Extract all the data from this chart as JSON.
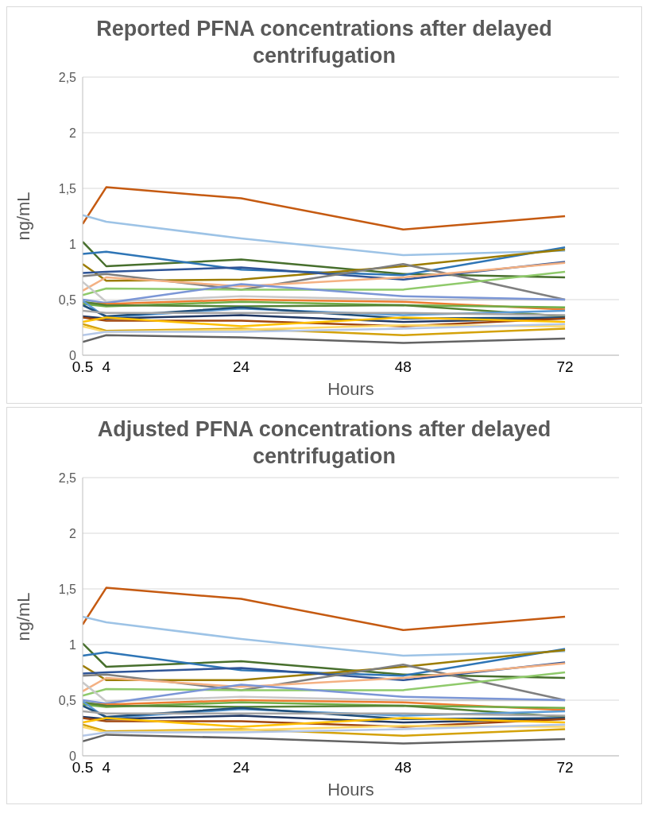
{
  "chart_data": [
    {
      "type": "line",
      "title": "Reported PFNA concentrations after delayed centrifugation",
      "xlabel": "Hours",
      "ylabel": "ng/mL",
      "x": [
        0.5,
        4,
        24,
        48,
        72
      ],
      "xlim": [
        0.5,
        80
      ],
      "xticks": [
        0.5,
        4,
        24,
        48,
        72
      ],
      "ylim": [
        0,
        2.5
      ],
      "yticks": [
        {
          "value": 0,
          "label": "0"
        },
        {
          "value": 0.5,
          "label": "0,5"
        },
        {
          "value": 1,
          "label": "1"
        },
        {
          "value": 1.5,
          "label": "1,5"
        },
        {
          "value": 2,
          "label": "2"
        },
        {
          "value": 2.5,
          "label": "2,5"
        }
      ],
      "grid": "y",
      "legend": false,
      "series": [
        {
          "color": "#c55a11",
          "values": [
            1.18,
            1.51,
            1.41,
            1.13,
            1.25
          ]
        },
        {
          "color": "#9dc3e6",
          "values": [
            1.26,
            1.2,
            1.05,
            0.9,
            0.94
          ]
        },
        {
          "color": "#476f2d",
          "values": [
            1.02,
            0.8,
            0.86,
            0.73,
            0.7
          ]
        },
        {
          "color": "#2e75b6",
          "values": [
            0.91,
            0.93,
            0.77,
            0.72,
            0.97
          ]
        },
        {
          "color": "#9c7c00",
          "values": [
            0.82,
            0.67,
            0.68,
            0.8,
            0.95
          ]
        },
        {
          "color": "#2f5597",
          "values": [
            0.74,
            0.75,
            0.79,
            0.68,
            0.84
          ]
        },
        {
          "color": "#7f7f7f",
          "values": [
            0.71,
            0.73,
            0.59,
            0.82,
            0.5
          ]
        },
        {
          "color": "#f4b183",
          "values": [
            0.58,
            0.7,
            0.62,
            0.7,
            0.83
          ]
        },
        {
          "color": "#8fca6b",
          "values": [
            0.54,
            0.6,
            0.59,
            0.59,
            0.75
          ]
        },
        {
          "color": "#c9c9c9",
          "values": [
            0.66,
            0.48,
            0.53,
            0.5,
            0.5
          ]
        },
        {
          "color": "#7b96d6",
          "values": [
            0.5,
            0.47,
            0.64,
            0.53,
            0.5
          ]
        },
        {
          "color": "#ed7d31",
          "values": [
            0.47,
            0.46,
            0.5,
            0.48,
            0.41
          ]
        },
        {
          "color": "#70ad47",
          "values": [
            0.46,
            0.44,
            0.48,
            0.45,
            0.43
          ]
        },
        {
          "color": "#548235",
          "values": [
            0.48,
            0.45,
            0.44,
            0.45,
            0.35
          ]
        },
        {
          "color": "#5b9bd5",
          "values": [
            0.49,
            0.34,
            0.42,
            0.36,
            0.4
          ]
        },
        {
          "color": "#1f4e79",
          "values": [
            0.45,
            0.35,
            0.43,
            0.33,
            0.34
          ]
        },
        {
          "color": "#a5a5a5",
          "values": [
            0.4,
            0.38,
            0.38,
            0.38,
            0.36
          ]
        },
        {
          "color": "#203864",
          "values": [
            0.35,
            0.33,
            0.36,
            0.3,
            0.33
          ]
        },
        {
          "color": "#a0460f",
          "values": [
            0.34,
            0.31,
            0.31,
            0.26,
            0.33
          ]
        },
        {
          "color": "#ffc000",
          "values": [
            0.3,
            0.34,
            0.26,
            0.34,
            0.3
          ]
        },
        {
          "color": "#d4a20a",
          "values": [
            0.28,
            0.22,
            0.24,
            0.18,
            0.24
          ]
        },
        {
          "color": "#ffd966",
          "values": [
            0.26,
            0.21,
            0.23,
            0.27,
            0.26
          ]
        },
        {
          "color": "#b4c7e7",
          "values": [
            0.18,
            0.21,
            0.21,
            0.24,
            0.28
          ]
        },
        {
          "color": "#636363",
          "values": [
            0.12,
            0.18,
            0.16,
            0.11,
            0.15
          ]
        }
      ]
    },
    {
      "type": "line",
      "title": "Adjusted PFNA concentrations after delayed centrifugation",
      "xlabel": "Hours",
      "ylabel": "ng/mL",
      "x": [
        0.5,
        4,
        24,
        48,
        72
      ],
      "xlim": [
        0.5,
        80
      ],
      "xticks": [
        0.5,
        4,
        24,
        48,
        72
      ],
      "ylim": [
        0,
        2.5
      ],
      "yticks": [
        {
          "value": 0,
          "label": "0"
        },
        {
          "value": 0.5,
          "label": "0,5"
        },
        {
          "value": 1,
          "label": "1"
        },
        {
          "value": 1.5,
          "label": "1,5"
        },
        {
          "value": 2,
          "label": "2"
        },
        {
          "value": 2.5,
          "label": "2,5"
        }
      ],
      "grid": "y",
      "legend": false,
      "series": [
        {
          "color": "#c55a11",
          "values": [
            1.18,
            1.51,
            1.41,
            1.13,
            1.25
          ]
        },
        {
          "color": "#9dc3e6",
          "values": [
            1.25,
            1.2,
            1.05,
            0.9,
            0.94
          ]
        },
        {
          "color": "#476f2d",
          "values": [
            1.01,
            0.8,
            0.85,
            0.73,
            0.7
          ]
        },
        {
          "color": "#2e75b6",
          "values": [
            0.9,
            0.93,
            0.77,
            0.72,
            0.96
          ]
        },
        {
          "color": "#9c7c00",
          "values": [
            0.81,
            0.68,
            0.68,
            0.8,
            0.95
          ]
        },
        {
          "color": "#2f5597",
          "values": [
            0.74,
            0.75,
            0.79,
            0.68,
            0.84
          ]
        },
        {
          "color": "#7f7f7f",
          "values": [
            0.72,
            0.73,
            0.59,
            0.82,
            0.5
          ]
        },
        {
          "color": "#f4b183",
          "values": [
            0.58,
            0.7,
            0.62,
            0.7,
            0.83
          ]
        },
        {
          "color": "#8fca6b",
          "values": [
            0.54,
            0.6,
            0.59,
            0.59,
            0.75
          ]
        },
        {
          "color": "#c9c9c9",
          "values": [
            0.66,
            0.49,
            0.53,
            0.5,
            0.5
          ]
        },
        {
          "color": "#7b96d6",
          "values": [
            0.5,
            0.47,
            0.64,
            0.53,
            0.5
          ]
        },
        {
          "color": "#ed7d31",
          "values": [
            0.47,
            0.46,
            0.5,
            0.48,
            0.41
          ]
        },
        {
          "color": "#70ad47",
          "values": [
            0.46,
            0.44,
            0.48,
            0.45,
            0.43
          ]
        },
        {
          "color": "#548235",
          "values": [
            0.48,
            0.45,
            0.44,
            0.45,
            0.35
          ]
        },
        {
          "color": "#5b9bd5",
          "values": [
            0.49,
            0.34,
            0.42,
            0.36,
            0.4
          ]
        },
        {
          "color": "#1f4e79",
          "values": [
            0.45,
            0.35,
            0.43,
            0.33,
            0.34
          ]
        },
        {
          "color": "#a5a5a5",
          "values": [
            0.4,
            0.38,
            0.38,
            0.38,
            0.36
          ]
        },
        {
          "color": "#203864",
          "values": [
            0.35,
            0.33,
            0.36,
            0.3,
            0.33
          ]
        },
        {
          "color": "#a0460f",
          "values": [
            0.34,
            0.31,
            0.31,
            0.26,
            0.33
          ]
        },
        {
          "color": "#ffc000",
          "values": [
            0.3,
            0.34,
            0.26,
            0.34,
            0.3
          ]
        },
        {
          "color": "#d4a20a",
          "values": [
            0.28,
            0.22,
            0.24,
            0.18,
            0.24
          ]
        },
        {
          "color": "#ffd966",
          "values": [
            0.26,
            0.21,
            0.23,
            0.27,
            0.26
          ]
        },
        {
          "color": "#b4c7e7",
          "values": [
            0.18,
            0.21,
            0.21,
            0.24,
            0.28
          ]
        },
        {
          "color": "#636363",
          "values": [
            0.13,
            0.19,
            0.16,
            0.11,
            0.15
          ]
        }
      ]
    }
  ]
}
